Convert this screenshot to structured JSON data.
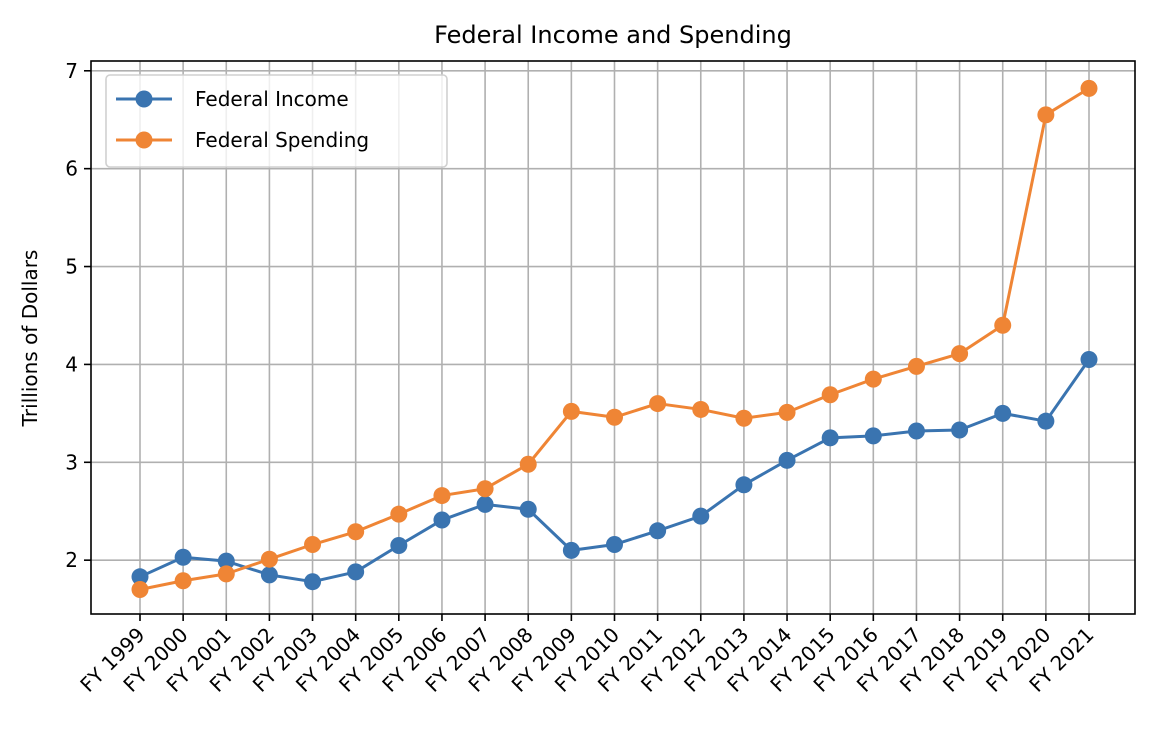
{
  "chart_data": {
    "type": "line",
    "title": "Federal Income and Spending",
    "xlabel": "",
    "ylabel": "Trillions of Dollars",
    "categories": [
      "FY 1999",
      "FY 2000",
      "FY 2001",
      "FY 2002",
      "FY 2003",
      "FY 2004",
      "FY 2005",
      "FY 2006",
      "FY 2007",
      "FY 2008",
      "FY 2009",
      "FY 2010",
      "FY 2011",
      "FY 2012",
      "FY 2013",
      "FY 2014",
      "FY 2015",
      "FY 2016",
      "FY 2017",
      "FY 2018",
      "FY 2019",
      "FY 2020",
      "FY 2021"
    ],
    "ylim": [
      1.45,
      7.1
    ],
    "yticks": [
      2,
      3,
      4,
      5,
      6,
      7
    ],
    "grid": true,
    "legend_position": "top-left",
    "series": [
      {
        "name": "Federal Income",
        "color": "#3a74b0",
        "values": [
          1.83,
          2.03,
          1.99,
          1.85,
          1.78,
          1.88,
          2.15,
          2.41,
          2.57,
          2.52,
          2.1,
          2.16,
          2.3,
          2.45,
          2.77,
          3.02,
          3.25,
          3.27,
          3.32,
          3.33,
          3.5,
          3.42,
          4.05
        ]
      },
      {
        "name": "Federal Spending",
        "color": "#ef8535",
        "values": [
          1.7,
          1.79,
          1.86,
          2.01,
          2.16,
          2.29,
          2.47,
          2.66,
          2.73,
          2.98,
          3.52,
          3.46,
          3.6,
          3.54,
          3.45,
          3.51,
          3.69,
          3.85,
          3.98,
          4.11,
          4.4,
          6.55,
          6.82
        ]
      }
    ]
  }
}
